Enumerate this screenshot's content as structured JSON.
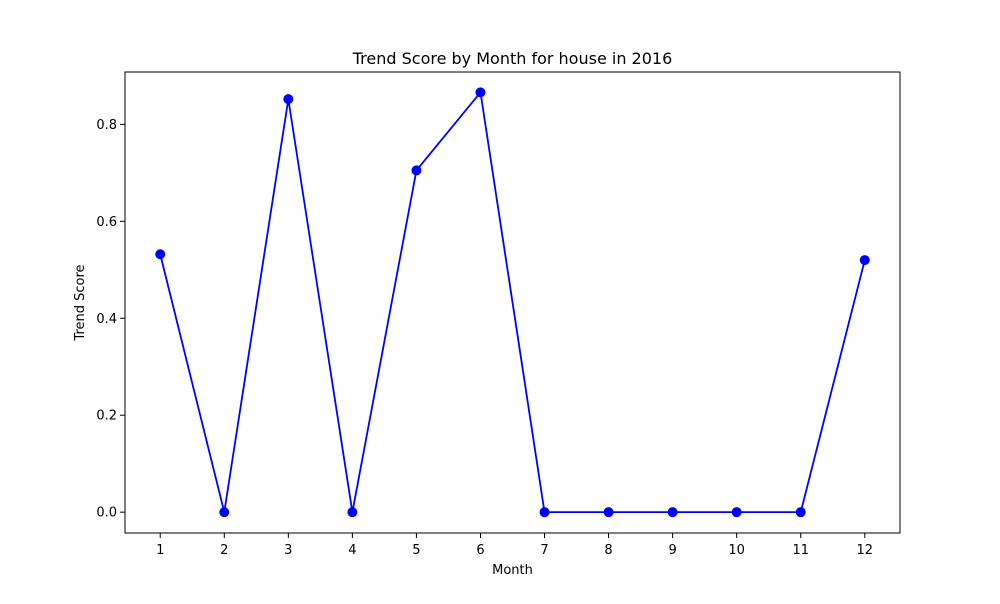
{
  "chart_data": {
    "type": "line",
    "title": "Trend Score by Month for house in 2016",
    "xlabel": "Month",
    "ylabel": "Trend Score",
    "x": [
      1,
      2,
      3,
      4,
      5,
      6,
      7,
      8,
      9,
      10,
      11,
      12
    ],
    "x_tick_labels": [
      "1",
      "2",
      "3",
      "4",
      "5",
      "6",
      "7",
      "8",
      "9",
      "10",
      "11",
      "12"
    ],
    "y_ticks": [
      0.0,
      0.2,
      0.4,
      0.6,
      0.8
    ],
    "y_tick_labels": [
      "0.0",
      "0.2",
      "0.4",
      "0.6",
      "0.8"
    ],
    "xlim": [
      0.45,
      12.55
    ],
    "ylim": [
      -0.043,
      0.908
    ],
    "grid": false,
    "series": [
      {
        "values": [
          0.532,
          0.0,
          0.852,
          0.0,
          0.705,
          0.866,
          0.0,
          0.0,
          0.0,
          0.0,
          0.0,
          0.52
        ],
        "color": "#0000ff",
        "marker": "circle"
      }
    ]
  }
}
